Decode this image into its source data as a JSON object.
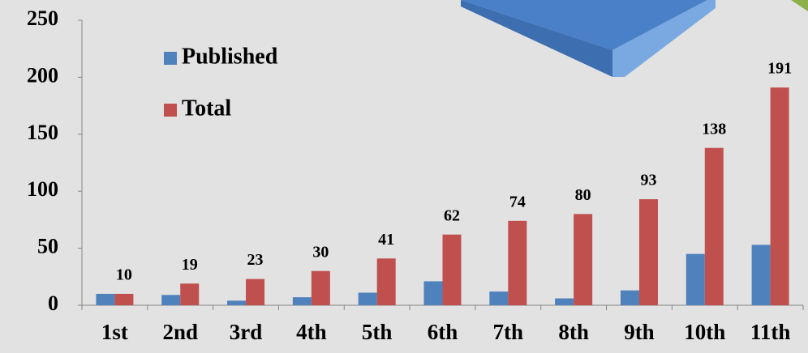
{
  "chart_data": {
    "type": "bar",
    "categories": [
      "1st",
      "2nd",
      "3rd",
      "4th",
      "5th",
      "6th",
      "7th",
      "8th",
      "9th",
      "10th",
      "11th"
    ],
    "series": [
      {
        "name": "Published",
        "color": "#4f81bd",
        "values": [
          10,
          9,
          4,
          7,
          11,
          21,
          12,
          6,
          13,
          45,
          53
        ]
      },
      {
        "name": "Total",
        "color": "#c0504d",
        "values": [
          10,
          19,
          23,
          30,
          41,
          62,
          74,
          80,
          93,
          138,
          191
        ]
      }
    ],
    "ylim": [
      0,
      250
    ],
    "yticks": [
      0,
      50,
      100,
      150,
      200,
      250
    ]
  }
}
